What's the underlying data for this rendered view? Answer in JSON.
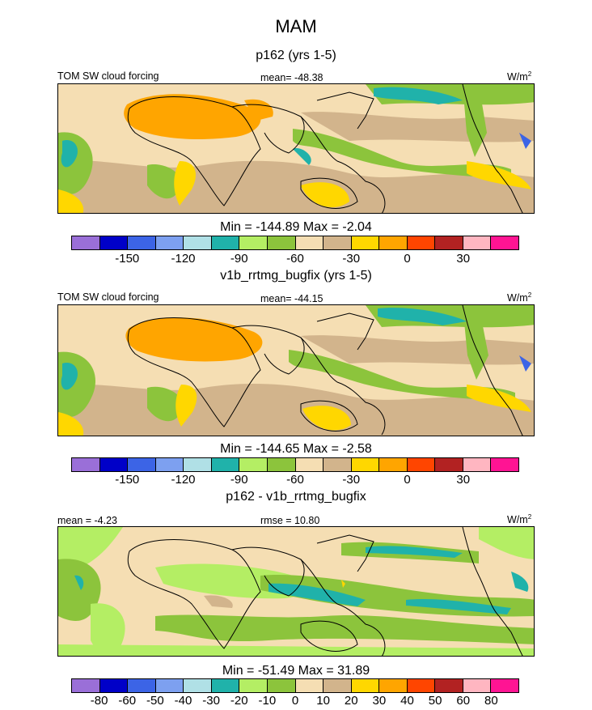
{
  "figure": {
    "title": "MAM",
    "panels": [
      {
        "subtitle": "p162 (yrs 1-5)",
        "left_label": "TOM SW cloud forcing",
        "center_label": "mean= -48.38",
        "units": "W/m",
        "units_sup": "2",
        "stats": "Min = -144.89 Max =  -2.04",
        "colorbar_ticks": [
          "-150",
          "-120",
          "-90",
          "-60",
          "-30",
          "0",
          "30"
        ],
        "field_values": {
          "min": -144.89,
          "max": -2.04,
          "mean": -48.38
        }
      },
      {
        "subtitle": "v1b_rrtmg_bugfix (yrs 1-5)",
        "left_label": "TOM SW cloud forcing",
        "center_label": "mean= -44.15",
        "units": "W/m",
        "units_sup": "2",
        "stats": "Min = -144.65 Max =  -2.58",
        "colorbar_ticks": [
          "-150",
          "-120",
          "-90",
          "-60",
          "-30",
          "0",
          "30"
        ],
        "field_values": {
          "min": -144.65,
          "max": -2.58,
          "mean": -44.15
        }
      },
      {
        "subtitle": "p162 - v1b_rrtmg_bugfix",
        "left_label": "mean =  -4.23",
        "center_label": "rmse =  10.80",
        "units": "W/m",
        "units_sup": "2",
        "stats": "Min = -51.49 Max =  31.89",
        "colorbar_ticks": [
          "-80",
          "-60",
          "-50",
          "-40",
          "-30",
          "-20",
          "-10",
          "0",
          "10",
          "20",
          "30",
          "40",
          "50",
          "60",
          "80"
        ],
        "field_values": {
          "min": -51.49,
          "max": 31.89,
          "mean": -4.23,
          "rmse": 10.8
        }
      }
    ],
    "palette": [
      "#9a6fd8",
      "#0000c8",
      "#3c64e6",
      "#7da0f0",
      "#b0e0e6",
      "#20b2aa",
      "#b4ee64",
      "#8cc43c",
      "#f5deb3",
      "#d2b48c",
      "#ffd700",
      "#ffa500",
      "#ff4500",
      "#b22222",
      "#ffb6c1",
      "#ff1493"
    ],
    "diff_palette": [
      "#9a6fd8",
      "#0000c8",
      "#3c64e6",
      "#7da0f0",
      "#b0e0e6",
      "#20b2aa",
      "#b4ee64",
      "#8cc43c",
      "#f5deb3",
      "#d2b48c",
      "#ffd700",
      "#ffa500",
      "#ff4500",
      "#b22222",
      "#ffb6c1",
      "#ff1493"
    ]
  }
}
